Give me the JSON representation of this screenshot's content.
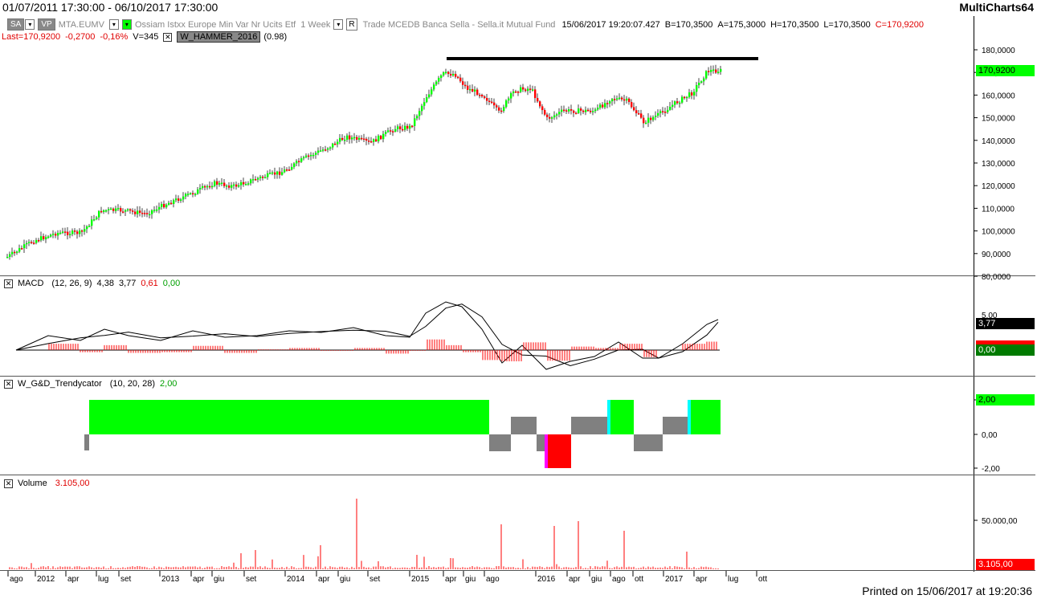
{
  "window": {
    "date_range": "01/07/2011 17:30:00 - 06/10/2017 17:30:00",
    "app_name": "MultiCharts64"
  },
  "toolbar": {
    "sa_label": "SA",
    "vp_label": "VP",
    "symbol": "MTA.EUMV",
    "description": "Ossiam Istxx Europe Min Var Nr Ucits Etf",
    "timeframe": "1 Week",
    "r_label": "R",
    "trade_info": "Trade  MCEDB  Banca Sella - Sella.it  Mutual Fund",
    "quote_datetime": "15/06/2017  19:20:07.427",
    "bid": "B=170,3500",
    "ask": "A=175,3000",
    "high": "H=170,3500",
    "low": "L=170,3500",
    "close": "C=170,9200"
  },
  "status_line": {
    "last": "Last=170,9200",
    "change": "-0,2700",
    "change_pct": "-0,16%",
    "volume": "V=345",
    "indicator": "W_HAMMER_2016",
    "indicator_value": "(0.98)"
  },
  "price_pane": {
    "y_ticks": [
      "180,0000",
      "170,0000",
      "160,0000",
      "150,0000",
      "140,0000",
      "130,0000",
      "120,0000",
      "110,0000",
      "100,0000",
      "90,0000",
      "80,0000"
    ],
    "last_tag": "170,9200",
    "last_tag_color": "#00ff00"
  },
  "macd_pane": {
    "label": "MACD",
    "params": "(12, 26, 9)",
    "macd": "4,38",
    "signal": "3,77",
    "hist_pos": "0,61",
    "hist_neg": "0,00",
    "y_tick": "5,00",
    "tag_signal": "3,77",
    "tag_zero": "0,00",
    "tag_hist": "0,61"
  },
  "trend_pane": {
    "label": "W_G&D_Trendycator",
    "params": "(10, 20, 28)",
    "value": "2,00",
    "y_ticks": [
      "2,00",
      "0,00",
      "-2,00"
    ]
  },
  "volume_pane": {
    "label": "Volume",
    "value": "3.105,00",
    "y_tick": "50.000,00",
    "tag": "3.105,00"
  },
  "x_axis": [
    {
      "t": "ago"
    },
    {
      "t": "2012"
    },
    {
      "t": "apr"
    },
    {
      "t": "lug"
    },
    {
      "t": "set"
    },
    {
      "t": "2013"
    },
    {
      "t": "apr"
    },
    {
      "t": "giu"
    },
    {
      "t": "set"
    },
    {
      "t": "2014"
    },
    {
      "t": "apr"
    },
    {
      "t": "giu"
    },
    {
      "t": "set"
    },
    {
      "t": "2015"
    },
    {
      "t": "apr"
    },
    {
      "t": "giu"
    },
    {
      "t": "ago"
    },
    {
      "t": "2016"
    },
    {
      "t": "apr"
    },
    {
      "t": "giu"
    },
    {
      "t": "ago"
    },
    {
      "t": "ott"
    },
    {
      "t": "2017"
    },
    {
      "t": "apr"
    },
    {
      "t": "lug"
    },
    {
      "t": "ott"
    }
  ],
  "footer": {
    "printed": "Printed on 15/06/2017 at 19:20:36"
  },
  "colors": {
    "up": "#00ff00",
    "down": "#ff0000",
    "grey": "#808080"
  }
}
